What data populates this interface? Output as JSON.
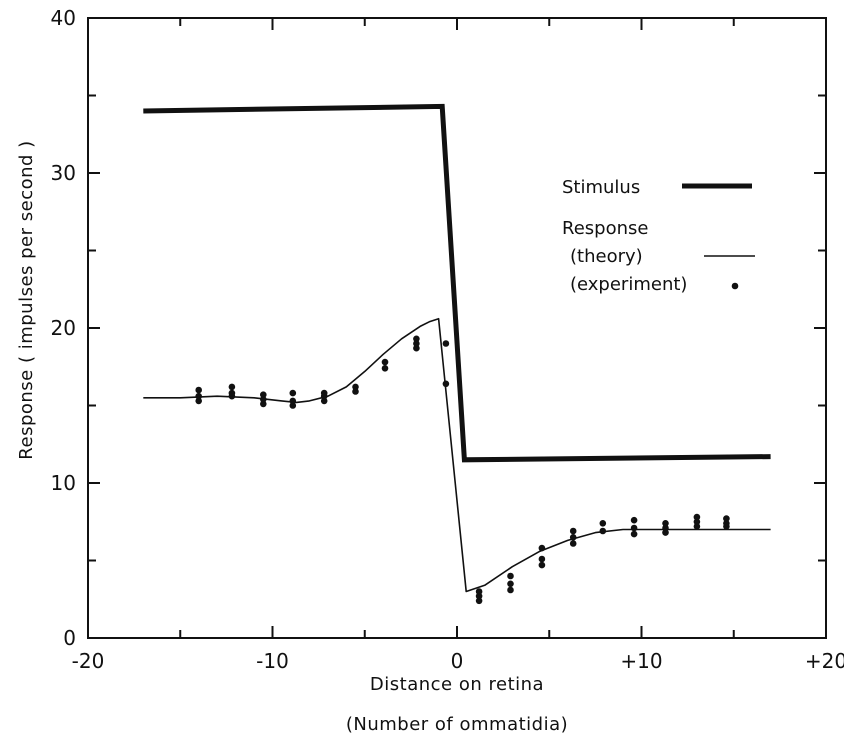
{
  "chart_data": {
    "type": "line",
    "xlabel": "Distance on retina",
    "xlabel_sub": "(Number of ommatidia)",
    "ylabel": "Response ( impulses per second )",
    "xlim": [
      -20,
      20
    ],
    "ylim": [
      0,
      40
    ],
    "x_ticks": [
      -20,
      -10,
      0,
      10,
      20
    ],
    "x_tick_labels": [
      "-20",
      "-10",
      "0",
      "+10",
      "+20"
    ],
    "y_ticks": [
      0,
      10,
      20,
      30,
      40
    ],
    "y_tick_labels": [
      "0",
      "10",
      "20",
      "30",
      "40"
    ],
    "minor_ticks": true,
    "grid": false,
    "legend_placement": "right-center",
    "series": [
      {
        "name": "Stimulus",
        "style": "thick-line",
        "color": "#111111",
        "x": [
          -17,
          -0.8,
          0.4,
          17
        ],
        "y": [
          34,
          34.3,
          11.5,
          11.7
        ]
      },
      {
        "name": "Response (theory)",
        "style": "thin-line",
        "color": "#111111",
        "x": [
          -17,
          -15,
          -13,
          -11,
          -9.5,
          -8.7,
          -8,
          -7,
          -6,
          -5,
          -4,
          -3,
          -2,
          -1.5,
          -1,
          0.5,
          1.5,
          3,
          4.5,
          6,
          7.5,
          9,
          10.5,
          12,
          14,
          17
        ],
        "y": [
          15.5,
          15.5,
          15.6,
          15.5,
          15.3,
          15.2,
          15.3,
          15.6,
          16.2,
          17.2,
          18.3,
          19.3,
          20.1,
          20.4,
          20.6,
          3.0,
          3.4,
          4.6,
          5.6,
          6.3,
          6.8,
          7.0,
          7.0,
          7.0,
          7.0,
          7.0
        ]
      },
      {
        "name": "Response (experiment)",
        "style": "points",
        "color": "#111111",
        "x": [
          -14,
          -14,
          -14,
          -12.2,
          -12.2,
          -12.2,
          -10.5,
          -10.5,
          -10.5,
          -8.9,
          -8.9,
          -8.9,
          -7.2,
          -7.2,
          -7.2,
          -5.5,
          -5.5,
          -3.9,
          -3.9,
          -2.2,
          -2.2,
          -2.2,
          -0.6,
          -0.6,
          1.2,
          1.2,
          1.2,
          2.9,
          2.9,
          2.9,
          4.6,
          4.6,
          4.6,
          6.3,
          6.3,
          6.3,
          7.9,
          7.9,
          9.6,
          9.6,
          9.6,
          11.3,
          11.3,
          11.3,
          13,
          13,
          13,
          14.6,
          14.6,
          14.6
        ],
        "y": [
          15.3,
          15.6,
          16.0,
          15.6,
          15.8,
          16.2,
          15.1,
          15.4,
          15.7,
          15.0,
          15.3,
          15.8,
          15.3,
          15.6,
          15.8,
          15.9,
          16.2,
          17.4,
          17.8,
          18.7,
          19.0,
          19.3,
          16.4,
          19.0,
          2.4,
          2.7,
          3.0,
          3.1,
          3.5,
          4.0,
          4.7,
          5.1,
          5.8,
          6.1,
          6.5,
          6.9,
          6.9,
          7.4,
          6.7,
          7.1,
          7.6,
          6.8,
          7.1,
          7.4,
          7.2,
          7.5,
          7.8,
          7.2,
          7.4,
          7.7
        ]
      }
    ],
    "legend": {
      "stimulus": "Stimulus",
      "response": "Response",
      "theory": "(theory)",
      "experiment": "(experiment)"
    }
  }
}
